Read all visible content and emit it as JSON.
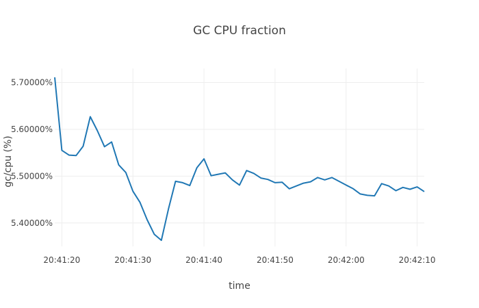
{
  "chart_data": {
    "type": "line",
    "title": "GC CPU fraction",
    "xlabel": "time",
    "ylabel": "gc/cpu (%)",
    "grid": true,
    "legend": "none",
    "x_tick_labels": [
      "20:41:20",
      "20:41:30",
      "20:41:40",
      "20:41:50",
      "20:42:00",
      "20:42:10"
    ],
    "x_tick_seconds": [
      20,
      30,
      40,
      50,
      60,
      70
    ],
    "y_tick_labels": [
      "5.40000%",
      "5.50000%",
      "5.60000%",
      "5.70000%"
    ],
    "y_ticks": [
      5.4,
      5.5,
      5.6,
      5.7
    ],
    "xlim_seconds": [
      19,
      71
    ],
    "ylim": [
      5.35,
      5.73
    ],
    "x_seconds": [
      19,
      20,
      21,
      22,
      23,
      24,
      25,
      26,
      27,
      28,
      29,
      30,
      31,
      32,
      33,
      34,
      35,
      36,
      37,
      38,
      39,
      40,
      41,
      42,
      43,
      44,
      45,
      46,
      47,
      48,
      49,
      50,
      51,
      52,
      53,
      54,
      55,
      56,
      57,
      58,
      59,
      60,
      61,
      62,
      63,
      64,
      65,
      66,
      67,
      68,
      69,
      70,
      71
    ],
    "series": [
      {
        "color": "#1f77b4",
        "values": [
          5.711,
          5.555,
          5.545,
          5.544,
          5.564,
          5.627,
          5.597,
          5.563,
          5.573,
          5.524,
          5.508,
          5.468,
          5.444,
          5.407,
          5.376,
          5.363,
          5.43,
          5.489,
          5.486,
          5.48,
          5.518,
          5.537,
          5.501,
          5.504,
          5.507,
          5.492,
          5.481,
          5.512,
          5.506,
          5.496,
          5.493,
          5.486,
          5.487,
          5.473,
          5.479,
          5.485,
          5.488,
          5.497,
          5.492,
          5.497,
          5.489,
          5.481,
          5.473,
          5.462,
          5.459,
          5.458,
          5.484,
          5.479,
          5.469,
          5.476,
          5.472,
          5.477,
          5.467
        ]
      }
    ]
  }
}
